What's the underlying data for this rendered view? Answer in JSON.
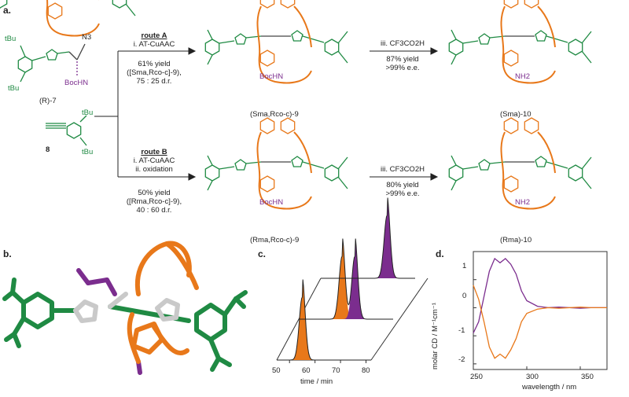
{
  "panels": {
    "a": "a.",
    "b": "b.",
    "c": "c.",
    "d": "d."
  },
  "compounds": {
    "r7": "(R)-7",
    "n3": "N3",
    "boc_hn": "BocHN",
    "tbu": "tBu",
    "c8": "8",
    "sma9": "(Sma,Rco-c)-9",
    "rma9": "(Rma,Rco-c)-9",
    "sma10": "(Sma)-10",
    "rma10": "(Rma)-10",
    "bochn": "BocHN",
    "nh2": "NH2"
  },
  "route_a": {
    "title": "route A",
    "step": "i. AT-CuAAC",
    "yield": "61% yield",
    "ratio_line1": "([Sma,Rco-c]-9),",
    "ratio_line2": "75 : 25 d.r."
  },
  "route_b": {
    "title": "route B",
    "step1": "i. AT-CuAAC",
    "step2": "ii. oxidation",
    "yield": "50% yield",
    "ratio_line1": "([Rma,Rco-c]-9),",
    "ratio_line2": "40 : 60 d.r."
  },
  "deprot_a": {
    "step": "iii. CF3CO2H",
    "yield": "87% yield",
    "ee": ">99% e.e."
  },
  "deprot_b": {
    "step": "iii. CF3CO2H",
    "yield": "80% yield",
    "ee": ">99% e.e."
  },
  "colors": {
    "green": "#1f8a43",
    "orange": "#e8781a",
    "purple": "#7b2d8e",
    "grey": "#c9c9c9"
  },
  "panel_c": {
    "xlabel": "time / min",
    "ticks": [
      "50",
      "60",
      "70",
      "80"
    ],
    "peaks": [
      {
        "trace": "front",
        "color": "orange",
        "time": 55
      },
      {
        "trace": "back",
        "color": "orange",
        "time": 62
      },
      {
        "trace": "back",
        "color": "purple",
        "time": 67
      },
      {
        "trace": "top",
        "color": "purple",
        "time": 71
      }
    ]
  },
  "chart_data": {
    "type": "line",
    "title": "",
    "xlabel": "wavelength / nm",
    "ylabel": "molar CD / M⁻¹cm⁻¹",
    "xlim": [
      250,
      375
    ],
    "ylim": [
      -2.2,
      2.0
    ],
    "xticks": [
      "250",
      "300",
      "350"
    ],
    "yticks": [
      "-2",
      "-1",
      "0",
      "1"
    ],
    "series": [
      {
        "color": "purple",
        "x": [
          250,
          255,
          260,
          265,
          270,
          275,
          280,
          285,
          290,
          295,
          300,
          310,
          320,
          330,
          340,
          350,
          360,
          375
        ],
        "values": [
          -0.9,
          -0.5,
          0.4,
          1.3,
          1.75,
          1.6,
          1.75,
          1.55,
          1.2,
          0.6,
          0.25,
          0.05,
          0.0,
          0.02,
          0.0,
          -0.02,
          0.0,
          0.0
        ]
      },
      {
        "color": "orange",
        "x": [
          250,
          255,
          260,
          265,
          270,
          275,
          280,
          285,
          290,
          295,
          300,
          310,
          320,
          330,
          340,
          350,
          360,
          375
        ],
        "values": [
          0.8,
          0.3,
          -0.5,
          -1.4,
          -1.8,
          -1.65,
          -1.8,
          -1.5,
          -1.1,
          -0.5,
          -0.2,
          -0.05,
          0.0,
          -0.02,
          0.0,
          0.02,
          0.0,
          0.0
        ]
      }
    ]
  }
}
